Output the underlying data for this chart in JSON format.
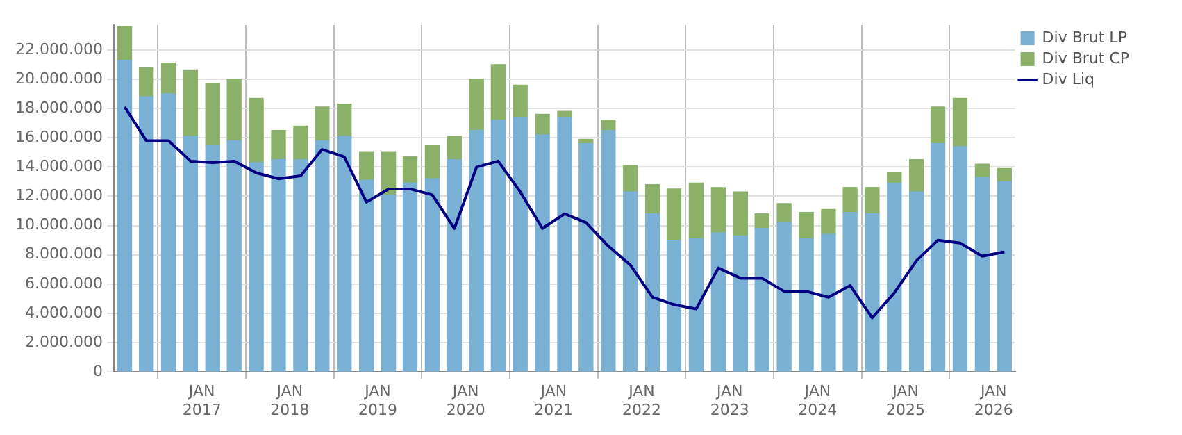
{
  "chart_data": {
    "type": "bar",
    "stacked": true,
    "grid": true,
    "legend": "top right",
    "x": [
      "2016-02-15",
      "2016-05-15",
      "2016-08-15",
      "2016-11-15",
      "2017-02-15",
      "2017-05-15",
      "2017-08-15",
      "2017-11-15",
      "2018-02-15",
      "2018-05-15",
      "2018-08-15",
      "2018-11-15",
      "2019-02-15",
      "2019-05-15",
      "2019-08-15",
      "2019-11-15",
      "2020-02-15",
      "2020-05-15",
      "2020-08-15",
      "2020-11-15",
      "2021-02-15",
      "2021-05-15",
      "2021-08-15",
      "2021-11-15",
      "2022-02-15",
      "2022-05-15",
      "2022-08-15",
      "2022-11-15",
      "2023-02-15",
      "2023-05-15",
      "2023-08-15",
      "2023-11-15",
      "2024-02-15",
      "2024-05-15",
      "2024-08-15",
      "2024-11-15",
      "2025-02-15",
      "2025-05-15",
      "2025-08-15",
      "2025-11-15",
      "2026-02-15"
    ],
    "xlim": [
      "2016-01-01",
      "2026-03-31"
    ],
    "xticks": [
      {
        "value": "2017-01",
        "label": "JAN 2017"
      },
      {
        "value": "2018-01",
        "label": "JAN 2018"
      },
      {
        "value": "2019-01",
        "label": "JAN 2019"
      },
      {
        "value": "2020-01",
        "label": "JAN 2020"
      },
      {
        "value": "2021-01",
        "label": "JAN 2021"
      },
      {
        "value": "2022-01",
        "label": "JAN 2022"
      },
      {
        "value": "2023-01",
        "label": "JAN 2023"
      },
      {
        "value": "2024-01",
        "label": "JAN 2024"
      },
      {
        "value": "2025-01",
        "label": "JAN 2025"
      },
      {
        "value": "2026-01",
        "label": "JAN 2026"
      }
    ],
    "ylim": [
      0,
      23700000
    ],
    "yticks": [
      {
        "value": 0,
        "label": "0"
      },
      {
        "value": 2000000,
        "label": "2.000.000"
      },
      {
        "value": 4000000,
        "label": "4.000.000"
      },
      {
        "value": 6000000,
        "label": "6.000.000"
      },
      {
        "value": 8000000,
        "label": "8.000.000"
      },
      {
        "value": 10000000,
        "label": "10.000.000"
      },
      {
        "value": 12000000,
        "label": "12.000.000"
      },
      {
        "value": 14000000,
        "label": "14.000.000"
      },
      {
        "value": 16000000,
        "label": "16.000.000"
      },
      {
        "value": 18000000,
        "label": "18.000.000"
      },
      {
        "value": 20000000,
        "label": "20.000.000"
      },
      {
        "value": 22000000,
        "label": "22.000.000"
      }
    ],
    "series": [
      {
        "name": "Div Brut LP",
        "color": "#7ab0d4",
        "values": [
          21300000,
          18800000,
          19000000,
          16100000,
          15500000,
          15800000,
          14300000,
          14500000,
          14500000,
          15800000,
          16100000,
          13100000,
          12100000,
          12900000,
          13200000,
          14500000,
          16500000,
          17200000,
          17400000,
          16200000,
          17400000,
          15600000,
          16500000,
          12300000,
          10800000,
          9000000,
          9100000,
          9500000,
          9300000,
          9800000,
          10200000,
          9100000,
          9400000,
          10900000,
          10800000,
          12900000,
          12300000,
          15600000,
          15400000,
          13300000,
          13000000
        ]
      },
      {
        "name": "Div Brut CP",
        "color": "#8ab06a",
        "values": [
          2300000,
          2000000,
          2100000,
          4500000,
          4200000,
          4200000,
          4400000,
          2000000,
          2300000,
          2300000,
          2200000,
          1900000,
          2900000,
          1800000,
          2300000,
          1600000,
          3500000,
          3800000,
          2200000,
          1400000,
          400000,
          300000,
          700000,
          1800000,
          2000000,
          3500000,
          3800000,
          3100000,
          3000000,
          1000000,
          1300000,
          1800000,
          1700000,
          1700000,
          1800000,
          700000,
          2200000,
          2500000,
          3300000,
          900000,
          900000
        ]
      },
      {
        "name": "Div Liq",
        "type": "line",
        "color": "#000080",
        "values": [
          18100000,
          15800000,
          15800000,
          14400000,
          14300000,
          14400000,
          13600000,
          13200000,
          13400000,
          15200000,
          14700000,
          11600000,
          12500000,
          12500000,
          12100000,
          9800000,
          14000000,
          14400000,
          12300000,
          9800000,
          10800000,
          10200000,
          8600000,
          7300000,
          5100000,
          4600000,
          4300000,
          7100000,
          6400000,
          6400000,
          5500000,
          5500000,
          5100000,
          5900000,
          3700000,
          5400000,
          7600000,
          9000000,
          8800000,
          7900000,
          8200000
        ]
      }
    ]
  }
}
